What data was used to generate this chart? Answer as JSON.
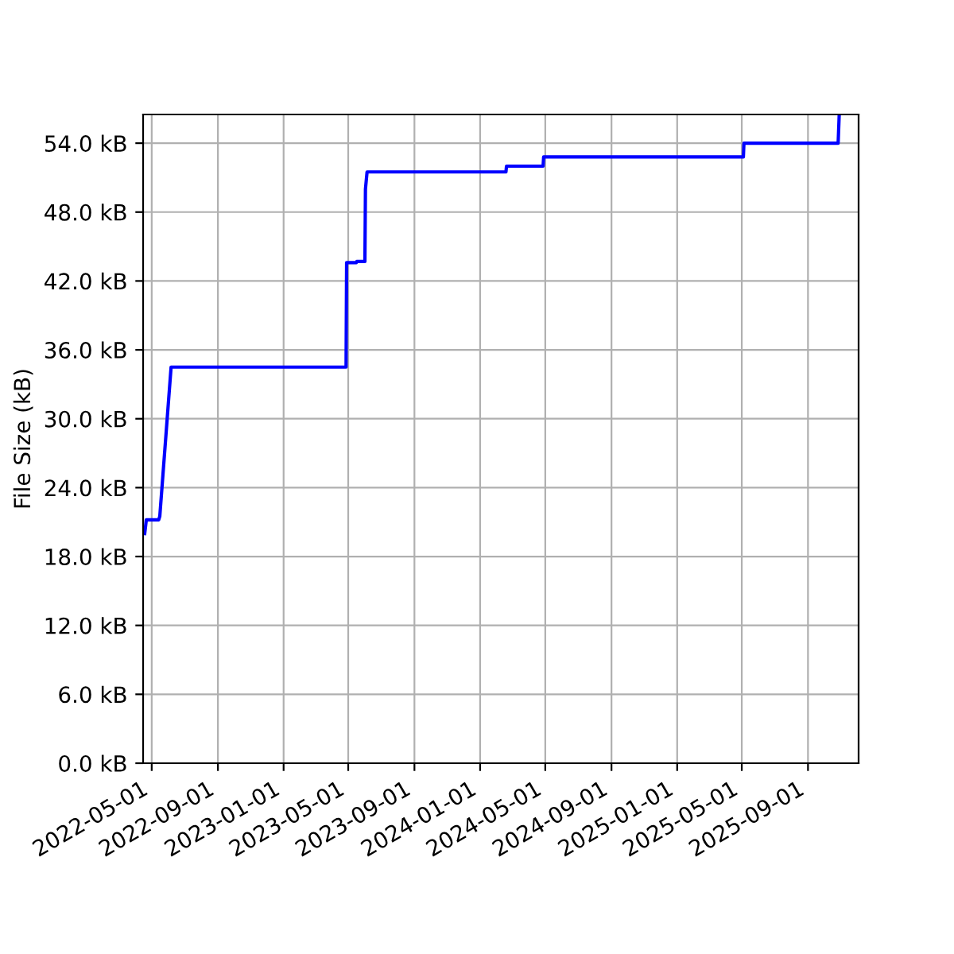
{
  "chart_data": {
    "type": "line",
    "ylabel": "File Size (kB)",
    "x": [
      "2022-04-18",
      "2022-04-21",
      "2022-05-14",
      "2022-05-16",
      "2022-06-06",
      "2023-04-27",
      "2023-04-28",
      "2023-05-16",
      "2023-05-17",
      "2023-06-01",
      "2023-06-02",
      "2023-06-05",
      "2024-02-18",
      "2024-02-19",
      "2024-04-27",
      "2024-04-28",
      "2025-05-04",
      "2025-05-05",
      "2025-10-27",
      "2025-10-29"
    ],
    "series": [
      {
        "color": "#0000ff",
        "values": [
          20.0,
          21.2,
          21.2,
          21.5,
          34.5,
          34.5,
          43.6,
          43.6,
          43.7,
          43.7,
          50.0,
          51.5,
          51.5,
          52.0,
          52.0,
          52.8,
          52.8,
          54.0,
          54.0,
          56.5
        ]
      }
    ],
    "xlim": [
      "2022-04-15",
      "2025-12-04"
    ],
    "xticks": [
      "2022-05-01",
      "2022-09-01",
      "2023-01-01",
      "2023-05-01",
      "2023-09-01",
      "2024-01-01",
      "2024-05-01",
      "2024-09-01",
      "2025-01-01",
      "2025-05-01",
      "2025-09-01"
    ],
    "ylim": [
      0,
      56.5
    ],
    "yticks": [
      {
        "value": 0,
        "label": "0.0 kB"
      },
      {
        "value": 6,
        "label": "6.0 kB"
      },
      {
        "value": 12,
        "label": "12.0 kB"
      },
      {
        "value": 18,
        "label": "18.0 kB"
      },
      {
        "value": 24,
        "label": "24.0 kB"
      },
      {
        "value": 30,
        "label": "30.0 kB"
      },
      {
        "value": 36,
        "label": "36.0 kB"
      },
      {
        "value": 42,
        "label": "42.0 kB"
      },
      {
        "value": 48,
        "label": "48.0 kB"
      },
      {
        "value": 54,
        "label": "54.0 kB"
      }
    ],
    "grid": true
  }
}
